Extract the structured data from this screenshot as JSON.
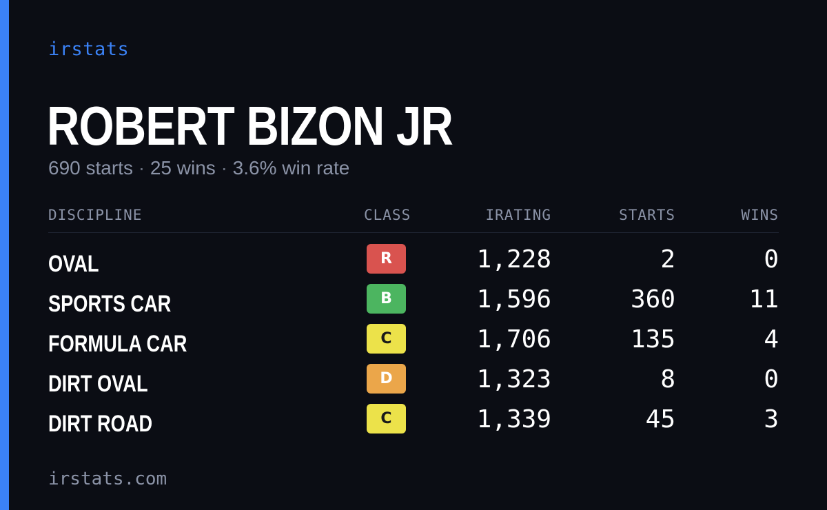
{
  "brand": "irstats",
  "driver": {
    "name": "ROBERT BIZON JR",
    "starts": "690 starts",
    "wins": "25 wins",
    "win_rate": "3.6% win rate",
    "separator": "·"
  },
  "table": {
    "headers": {
      "discipline": "DISCIPLINE",
      "class": "CLASS",
      "irating": "IRATING",
      "starts": "STARTS",
      "wins": "WINS"
    },
    "rows": [
      {
        "discipline": "OVAL",
        "class": "R",
        "class_color": "#d9534f",
        "irating": "1,228",
        "starts": "2",
        "wins": "0"
      },
      {
        "discipline": "SPORTS CAR",
        "class": "B",
        "class_color": "#4cb560",
        "irating": "1,596",
        "starts": "360",
        "wins": "11"
      },
      {
        "discipline": "FORMULA CAR",
        "class": "C",
        "class_color": "#ece24a",
        "irating": "1,706",
        "starts": "135",
        "wins": "4"
      },
      {
        "discipline": "DIRT OVAL",
        "class": "D",
        "class_color": "#eba64a",
        "irating": "1,323",
        "starts": "8",
        "wins": "0"
      },
      {
        "discipline": "DIRT ROAD",
        "class": "C",
        "class_color": "#ece24a",
        "irating": "1,339",
        "starts": "45",
        "wins": "3"
      }
    ]
  },
  "footer": "irstats.com",
  "colors": {
    "accent": "#3b82f6",
    "background": "#0b0d14",
    "muted_text": "#8b93a7",
    "dark_badge_text": "#1a1a1a"
  }
}
